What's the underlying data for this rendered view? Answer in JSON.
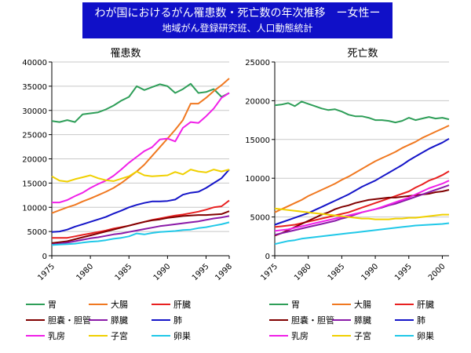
{
  "header": {
    "title": "わが国におけるがん罹患数・死亡数の年次推移　ー女性ー",
    "subtitle": "地域がん登録研究班、人口動態統計"
  },
  "chart_data": [
    {
      "type": "line",
      "title": "罹患数",
      "xlabel": "",
      "ylabel": "",
      "xlim": [
        1975,
        1998
      ],
      "ylim": [
        0,
        40000
      ],
      "yticks": [
        0,
        5000,
        10000,
        15000,
        20000,
        25000,
        30000,
        35000,
        40000
      ],
      "xticks": [
        1975,
        1980,
        1985,
        1990,
        1995,
        1998
      ],
      "x": [
        1975,
        1976,
        1977,
        1978,
        1979,
        1980,
        1981,
        1982,
        1983,
        1984,
        1985,
        1986,
        1987,
        1988,
        1989,
        1990,
        1991,
        1992,
        1993,
        1994,
        1995,
        1996,
        1997,
        1998
      ],
      "series": [
        {
          "name": "胃",
          "color": "#2e9e58",
          "values": [
            27800,
            27600,
            28000,
            27600,
            29200,
            29400,
            29600,
            30200,
            31000,
            32000,
            32800,
            35000,
            34200,
            34800,
            35400,
            35000,
            33600,
            34400,
            35500,
            33600,
            33800,
            34400,
            32800,
            33600
          ]
        },
        {
          "name": "大腸",
          "color": "#f07820",
          "values": [
            8800,
            9400,
            10000,
            10500,
            11200,
            11800,
            12500,
            13200,
            14000,
            15000,
            16200,
            17400,
            18800,
            20600,
            22400,
            24200,
            26000,
            28000,
            31400,
            31400,
            32600,
            34000,
            35200,
            36600
          ]
        },
        {
          "name": "肝臓",
          "color": "#e82020",
          "values": [
            3700,
            3700,
            3700,
            4000,
            4300,
            4600,
            4900,
            5200,
            5600,
            5900,
            6200,
            6600,
            7000,
            7400,
            7700,
            8000,
            8300,
            8500,
            8800,
            9100,
            9500,
            10000,
            10200,
            11400
          ]
        },
        {
          "name": "胆嚢・胆管",
          "color": "#800000",
          "values": [
            2600,
            2800,
            3000,
            3400,
            3800,
            4200,
            4600,
            5000,
            5400,
            5800,
            6200,
            6600,
            7000,
            7300,
            7500,
            7800,
            8000,
            8200,
            8300,
            8400,
            8400,
            8500,
            8600,
            9200
          ]
        },
        {
          "name": "膵臓",
          "color": "#8a1aa8",
          "values": [
            2300,
            2500,
            2700,
            3000,
            3300,
            3600,
            3800,
            4100,
            4400,
            4600,
            4900,
            5200,
            5500,
            5800,
            6100,
            6300,
            6500,
            6700,
            6900,
            7100,
            7400,
            7700,
            7900,
            8200
          ]
        },
        {
          "name": "肺",
          "color": "#1414c8",
          "values": [
            4900,
            5000,
            5400,
            6000,
            6500,
            7000,
            7500,
            8000,
            8700,
            9300,
            10000,
            10500,
            10900,
            11200,
            11200,
            11300,
            11600,
            12600,
            13000,
            13200,
            14000,
            15000,
            16000,
            17800
          ]
        },
        {
          "name": "乳房",
          "color": "#f020e8",
          "values": [
            11000,
            11000,
            11500,
            12300,
            13000,
            14000,
            14800,
            15500,
            16500,
            17800,
            19200,
            20400,
            21600,
            22400,
            24000,
            24200,
            23600,
            26400,
            27600,
            27400,
            28800,
            30400,
            32600,
            33600
          ]
        },
        {
          "name": "子宮",
          "color": "#f0d000",
          "values": [
            16400,
            15500,
            15300,
            15800,
            16200,
            16600,
            16000,
            15600,
            15400,
            15900,
            16400,
            17400,
            16600,
            16400,
            16500,
            16600,
            17300,
            16800,
            17800,
            17400,
            17200,
            17800,
            17400,
            17800
          ]
        },
        {
          "name": "卵巣",
          "color": "#20c8e8",
          "values": [
            2200,
            2300,
            2400,
            2500,
            2700,
            2900,
            3000,
            3200,
            3500,
            3700,
            4000,
            4600,
            4400,
            4700,
            4900,
            5000,
            5100,
            5300,
            5400,
            5700,
            5900,
            6200,
            6500,
            6900
          ]
        }
      ]
    },
    {
      "type": "line",
      "title": "死亡数",
      "xlabel": "",
      "ylabel": "",
      "xlim": [
        1975,
        2001
      ],
      "ylim": [
        0,
        25000
      ],
      "yticks": [
        0,
        5000,
        10000,
        15000,
        20000,
        25000
      ],
      "xticks": [
        1975,
        1980,
        1985,
        1990,
        1995,
        2000
      ],
      "x": [
        1975,
        1976,
        1977,
        1978,
        1979,
        1980,
        1981,
        1982,
        1983,
        1984,
        1985,
        1986,
        1987,
        1988,
        1989,
        1990,
        1991,
        1992,
        1993,
        1994,
        1995,
        1996,
        1997,
        1998,
        1999,
        2000,
        2001
      ],
      "series": [
        {
          "name": "胃",
          "color": "#2e9e58",
          "values": [
            19400,
            19500,
            19700,
            19300,
            19900,
            19600,
            19300,
            19000,
            18800,
            18900,
            18600,
            18200,
            18000,
            18000,
            17800,
            17500,
            17500,
            17400,
            17200,
            17400,
            17800,
            17500,
            17700,
            17900,
            17700,
            17800,
            17600
          ]
        },
        {
          "name": "大腸",
          "color": "#f07820",
          "values": [
            5600,
            6000,
            6400,
            6800,
            7200,
            7700,
            8100,
            8500,
            8900,
            9300,
            9800,
            10200,
            10700,
            11200,
            11700,
            12200,
            12600,
            13000,
            13400,
            13900,
            14300,
            14700,
            15200,
            15600,
            16000,
            16400,
            16800
          ]
        },
        {
          "name": "肝臓",
          "color": "#e82020",
          "values": [
            3700,
            3800,
            3900,
            4000,
            4200,
            4400,
            4600,
            4800,
            5000,
            5200,
            5400,
            5600,
            5900,
            6200,
            6500,
            6800,
            7100,
            7400,
            7700,
            8000,
            8300,
            8800,
            9200,
            9700,
            10000,
            10400,
            10900
          ]
        },
        {
          "name": "胆嚢・胆管",
          "color": "#800000",
          "values": [
            2600,
            2900,
            3300,
            3700,
            4100,
            4500,
            4900,
            5300,
            5600,
            6000,
            6300,
            6500,
            6800,
            7000,
            7200,
            7300,
            7400,
            7500,
            7500,
            7600,
            7700,
            7800,
            7900,
            8000,
            8200,
            8300,
            8500
          ]
        },
        {
          "name": "膵臓",
          "color": "#8a1aa8",
          "values": [
            2700,
            2900,
            3100,
            3300,
            3500,
            3700,
            3900,
            4100,
            4300,
            4500,
            4800,
            5000,
            5300,
            5600,
            5800,
            6000,
            6200,
            6500,
            6700,
            7000,
            7300,
            7600,
            7900,
            8200,
            8500,
            8800,
            9100
          ]
        },
        {
          "name": "肺",
          "color": "#1414c8",
          "values": [
            4000,
            4300,
            4600,
            4900,
            5200,
            5500,
            5900,
            6300,
            6700,
            7100,
            7500,
            7900,
            8400,
            8900,
            9300,
            9700,
            10200,
            10700,
            11200,
            11700,
            12300,
            12800,
            13300,
            13800,
            14200,
            14600,
            15100
          ]
        },
        {
          "name": "乳房",
          "color": "#f020e8",
          "values": [
            3200,
            3300,
            3400,
            3600,
            3800,
            4000,
            4200,
            4400,
            4600,
            4800,
            5000,
            5200,
            5400,
            5600,
            5800,
            6000,
            6300,
            6600,
            6900,
            7200,
            7500,
            7900,
            8300,
            8700,
            9000,
            9300,
            9700
          ]
        },
        {
          "name": "子宮",
          "color": "#f0d000",
          "values": [
            6100,
            6000,
            5900,
            5800,
            5700,
            5600,
            5500,
            5400,
            5300,
            5200,
            5100,
            5000,
            4900,
            4800,
            4800,
            4700,
            4700,
            4700,
            4800,
            4800,
            4900,
            4900,
            5000,
            5100,
            5200,
            5300,
            5300
          ]
        },
        {
          "name": "卵巣",
          "color": "#20c8e8",
          "values": [
            1500,
            1700,
            1900,
            2000,
            2200,
            2300,
            2400,
            2500,
            2600,
            2700,
            2800,
            2900,
            3000,
            3100,
            3200,
            3300,
            3400,
            3500,
            3600,
            3700,
            3800,
            3900,
            3950,
            4000,
            4050,
            4100,
            4200
          ]
        }
      ]
    }
  ],
  "legend": {
    "items": [
      {
        "name": "胃",
        "color": "#2e9e58"
      },
      {
        "name": "大腸",
        "color": "#f07820"
      },
      {
        "name": "肝臓",
        "color": "#e82020"
      },
      {
        "name": "胆嚢・胆管",
        "color": "#800000"
      },
      {
        "name": "膵臓",
        "color": "#8a1aa8"
      },
      {
        "name": "肺",
        "color": "#1414c8"
      },
      {
        "name": "乳房",
        "color": "#f020e8"
      },
      {
        "name": "子宮",
        "color": "#f0d000"
      },
      {
        "name": "卵巣",
        "color": "#20c8e8"
      }
    ]
  }
}
